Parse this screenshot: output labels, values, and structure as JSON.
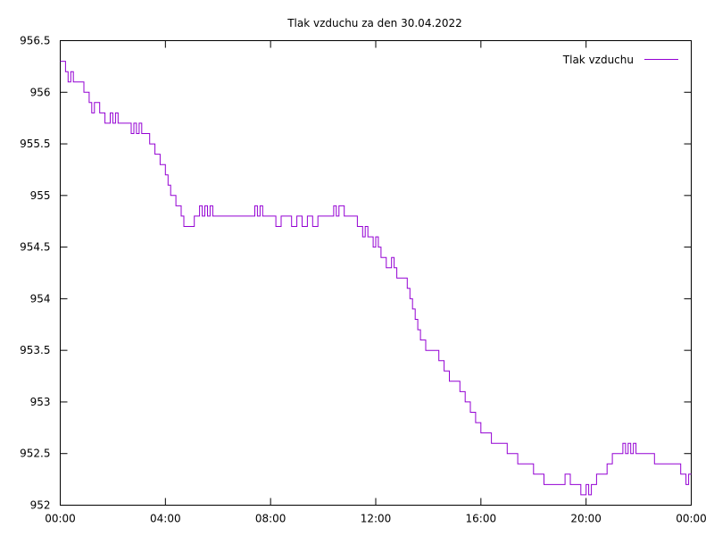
{
  "chart_data": {
    "type": "line",
    "title": "Tlak vzduchu za den 30.04.2022",
    "xlabel": "",
    "ylabel": "",
    "xlim_hours": [
      0,
      24
    ],
    "ylim": [
      952,
      956.5
    ],
    "x_tick_labels": [
      "00:00",
      "04:00",
      "08:00",
      "12:00",
      "16:00",
      "20:00",
      "00:00"
    ],
    "y_tick_labels": [
      "952",
      "952.5",
      "953",
      "953.5",
      "954",
      "954.5",
      "955",
      "955.5",
      "956",
      "956.5"
    ],
    "grid": false,
    "legend": "top-right",
    "series": [
      {
        "name": "Tlak vzduchu",
        "color": "#9400d3",
        "x_hours": [
          0.0,
          0.1,
          0.2,
          0.3,
          0.4,
          0.5,
          0.6,
          0.7,
          0.8,
          0.9,
          1.0,
          1.1,
          1.2,
          1.3,
          1.4,
          1.5,
          1.6,
          1.7,
          1.8,
          1.9,
          2.0,
          2.1,
          2.2,
          2.3,
          2.4,
          2.5,
          2.6,
          2.7,
          2.8,
          2.9,
          3.0,
          3.1,
          3.2,
          3.3,
          3.4,
          3.5,
          3.6,
          3.7,
          3.8,
          3.9,
          4.0,
          4.1,
          4.2,
          4.3,
          4.4,
          4.5,
          4.6,
          4.7,
          4.8,
          4.9,
          5.0,
          5.1,
          5.2,
          5.3,
          5.4,
          5.5,
          5.6,
          5.7,
          5.8,
          5.9,
          6.0,
          6.2,
          6.4,
          6.6,
          6.8,
          7.0,
          7.2,
          7.4,
          7.5,
          7.6,
          7.7,
          7.8,
          8.0,
          8.2,
          8.4,
          8.6,
          8.8,
          9.0,
          9.2,
          9.4,
          9.6,
          9.8,
          10.0,
          10.2,
          10.3,
          10.4,
          10.5,
          10.6,
          10.8,
          11.0,
          11.2,
          11.3,
          11.4,
          11.5,
          11.6,
          11.7,
          11.8,
          11.9,
          12.0,
          12.1,
          12.2,
          12.3,
          12.4,
          12.5,
          12.6,
          12.7,
          12.8,
          12.9,
          13.0,
          13.1,
          13.2,
          13.3,
          13.4,
          13.5,
          13.6,
          13.7,
          13.8,
          13.9,
          14.0,
          14.2,
          14.4,
          14.6,
          14.8,
          15.0,
          15.2,
          15.4,
          15.6,
          15.8,
          16.0,
          16.2,
          16.4,
          16.6,
          16.8,
          17.0,
          17.2,
          17.4,
          17.6,
          17.8,
          18.0,
          18.2,
          18.4,
          18.6,
          18.8,
          19.0,
          19.2,
          19.4,
          19.6,
          19.8,
          20.0,
          20.1,
          20.2,
          20.3,
          20.4,
          20.6,
          20.8,
          21.0,
          21.2,
          21.4,
          21.5,
          21.6,
          21.7,
          21.8,
          21.9,
          22.0,
          22.2,
          22.4,
          22.6,
          22.8,
          23.0,
          23.2,
          23.4,
          23.6,
          23.7,
          23.8,
          23.9,
          24.0
        ],
        "values": [
          956.3,
          956.3,
          956.2,
          956.1,
          956.2,
          956.1,
          956.1,
          956.1,
          956.1,
          956.0,
          956.0,
          955.9,
          955.8,
          955.9,
          955.9,
          955.8,
          955.8,
          955.7,
          955.7,
          955.8,
          955.7,
          955.8,
          955.7,
          955.7,
          955.7,
          955.7,
          955.7,
          955.6,
          955.7,
          955.6,
          955.7,
          955.6,
          955.6,
          955.6,
          955.5,
          955.5,
          955.4,
          955.4,
          955.3,
          955.3,
          955.2,
          955.1,
          955.0,
          955.0,
          954.9,
          954.9,
          954.8,
          954.7,
          954.7,
          954.7,
          954.7,
          954.8,
          954.8,
          954.9,
          954.8,
          954.9,
          954.8,
          954.9,
          954.8,
          954.8,
          954.8,
          954.8,
          954.8,
          954.8,
          954.8,
          954.8,
          954.8,
          954.9,
          954.8,
          954.9,
          954.8,
          954.8,
          954.8,
          954.7,
          954.8,
          954.8,
          954.7,
          954.8,
          954.7,
          954.8,
          954.7,
          954.8,
          954.8,
          954.8,
          954.8,
          954.9,
          954.8,
          954.9,
          954.8,
          954.8,
          954.8,
          954.7,
          954.7,
          954.6,
          954.7,
          954.6,
          954.6,
          954.5,
          954.6,
          954.5,
          954.4,
          954.4,
          954.3,
          954.3,
          954.4,
          954.3,
          954.2,
          954.2,
          954.2,
          954.2,
          954.1,
          954.0,
          953.9,
          953.8,
          953.7,
          953.6,
          953.6,
          953.5,
          953.5,
          953.5,
          953.4,
          953.3,
          953.2,
          953.2,
          953.1,
          953.0,
          952.9,
          952.8,
          952.7,
          952.7,
          952.6,
          952.6,
          952.6,
          952.5,
          952.5,
          952.4,
          952.4,
          952.4,
          952.3,
          952.3,
          952.2,
          952.2,
          952.2,
          952.2,
          952.3,
          952.2,
          952.2,
          952.1,
          952.2,
          952.1,
          952.2,
          952.2,
          952.3,
          952.3,
          952.4,
          952.5,
          952.5,
          952.6,
          952.5,
          952.6,
          952.5,
          952.6,
          952.5,
          952.5,
          952.5,
          952.5,
          952.4,
          952.4,
          952.4,
          952.4,
          952.4,
          952.3,
          952.3,
          952.2,
          952.3,
          952.3
        ]
      }
    ]
  }
}
